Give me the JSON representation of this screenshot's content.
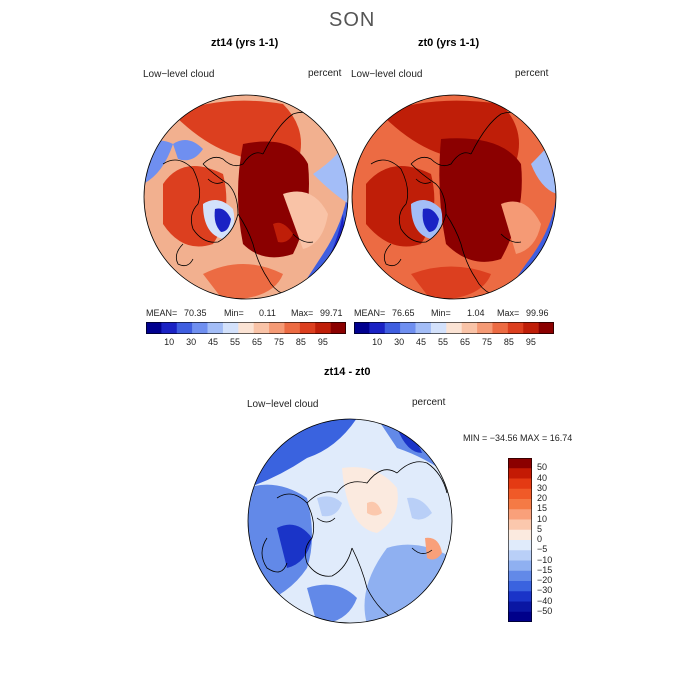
{
  "figure": {
    "title": "SON"
  },
  "panels": [
    {
      "title": "zt14 (yrs 1-1)",
      "field": "Low−level cloud",
      "units": "percent",
      "mean_label": "MEAN=",
      "mean": "70.35",
      "min_label": "Min=",
      "min": "0.11",
      "max_label": "Max=",
      "max": "99.71"
    },
    {
      "title": "zt0 (yrs 1-1)",
      "field": "Low−level cloud",
      "units": "percent",
      "mean_label": "MEAN=",
      "mean": "76.65",
      "min_label": "Min=",
      "min": "1.04",
      "max_label": "Max=",
      "max": "99.96"
    },
    {
      "title": "zt14 - zt0",
      "field": "Low−level cloud",
      "units": "percent",
      "minmax_text": "MIN = −34.56 MAX =  16.74"
    }
  ],
  "colorbar_abs": {
    "ticks": [
      "10",
      "30",
      "45",
      "55",
      "65",
      "75",
      "85",
      "95"
    ],
    "colors": [
      "#00008f",
      "#1a22c4",
      "#3f5ee0",
      "#6f8ff0",
      "#a3bdf7",
      "#d3e1fb",
      "#fbe3d4",
      "#f9c3a7",
      "#f59a75",
      "#ec6b43",
      "#dc3f1f",
      "#bf1e08",
      "#8b0000"
    ]
  },
  "colorbar_diff": {
    "labels": [
      "50",
      "40",
      "30",
      "20",
      "15",
      "10",
      "5",
      "0",
      "−5",
      "−10",
      "−15",
      "−20",
      "−30",
      "−40",
      "−50"
    ],
    "colors": [
      "#8b0000",
      "#c41a04",
      "#e43a13",
      "#f05a28",
      "#f57a45",
      "#f9a07a",
      "#fbc8ad",
      "#fbeadf",
      "#e0ebfb",
      "#b9cff7",
      "#8fb0f1",
      "#6289e8",
      "#3a63df",
      "#1a34c8",
      "#0a16a3",
      "#00008a"
    ]
  }
}
